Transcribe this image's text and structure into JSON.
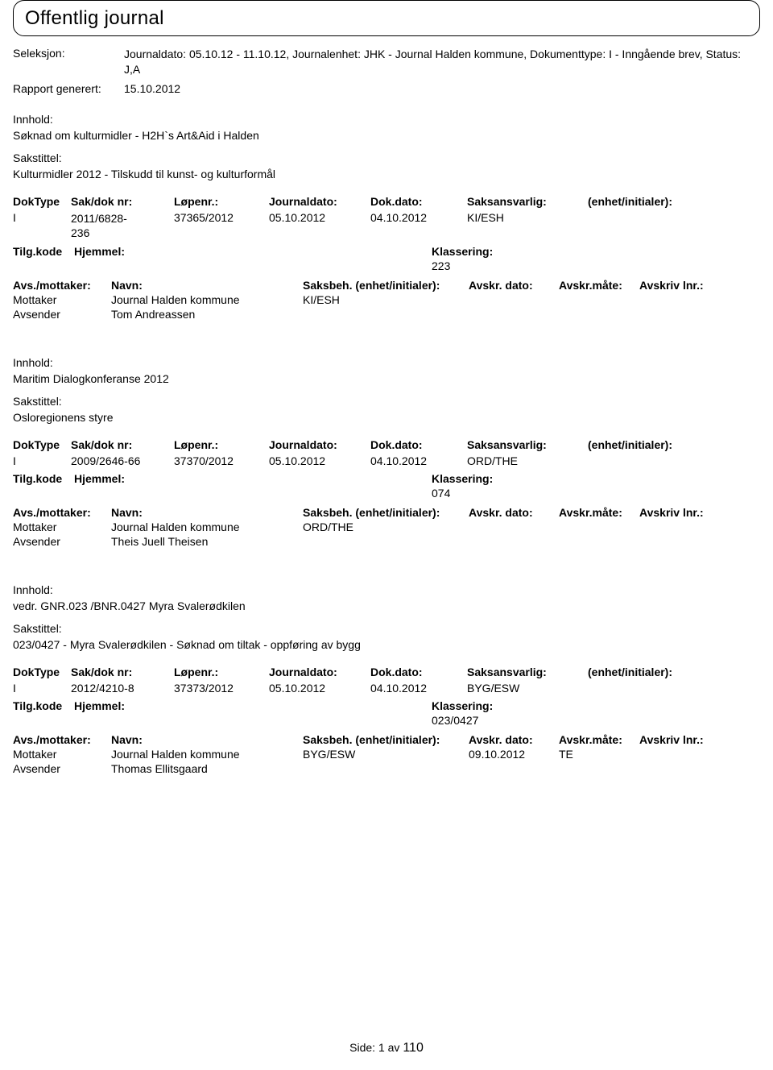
{
  "page_title": "Offentlig journal",
  "header": {
    "seleksjon_label": "Seleksjon:",
    "seleksjon_value": "Journaldato: 05.10.12 - 11.10.12, Journalenhet: JHK - Journal Halden kommune, Dokumenttype: I - Inngående brev, Status: J,A",
    "rapport_label": "Rapport generert:",
    "rapport_value": "15.10.2012"
  },
  "labels": {
    "innhold": "Innhold:",
    "sakstittel": "Sakstittel:",
    "doktype": "DokType",
    "saknr": "Sak/dok nr:",
    "lopenr": "Løpenr.:",
    "journaldato": "Journaldato:",
    "dokdato": "Dok.dato:",
    "saksansvarlig": "Saksansvarlig:",
    "enhet": "(enhet/initialer):",
    "tilgkode": "Tilg.kode",
    "hjemmel": "Hjemmel:",
    "klassering": "Klassering:",
    "avsmottaker": "Avs./mottaker:",
    "navn": "Navn:",
    "saksbeh": "Saksbeh.",
    "enhet2": "(enhet/initialer):",
    "avskrdato": "Avskr. dato:",
    "avskrmate": "Avskr.måte:",
    "avskrivlnr": "Avskriv lnr.:",
    "mottaker": "Mottaker",
    "avsender": "Avsender"
  },
  "entries": [
    {
      "innhold": "Søknad om kulturmidler - H2H`s Art&Aid i Halden",
      "sakstittel": "Kulturmidler 2012 - Tilskudd til kunst- og kulturformål",
      "doktype": "I",
      "saknr_l1": "2011/6828-",
      "saknr_l2": "236",
      "lopenr": "37365/2012",
      "journaldato": "05.10.2012",
      "dokdato": "04.10.2012",
      "saksansvarlig": "KI/ESH",
      "klassering_val": "223",
      "mottaker_navn": "Journal Halden kommune",
      "saksbeh_val": "KI/ESH",
      "avskr_dato": "",
      "avskr_mate": "",
      "avsender_navn": "Tom Andreassen"
    },
    {
      "innhold": "Maritim Dialogkonferanse 2012",
      "sakstittel": "Osloregionens styre",
      "doktype": "I",
      "saknr_l1": "2009/2646-66",
      "saknr_l2": "",
      "lopenr": "37370/2012",
      "journaldato": "05.10.2012",
      "dokdato": "04.10.2012",
      "saksansvarlig": "ORD/THE",
      "klassering_val": "074",
      "mottaker_navn": "Journal Halden kommune",
      "saksbeh_val": "ORD/THE",
      "avskr_dato": "",
      "avskr_mate": "",
      "avsender_navn": "Theis Juell Theisen"
    },
    {
      "innhold": "vedr. GNR.023 /BNR.0427 Myra Svalerødkilen",
      "sakstittel": "023/0427 - Myra Svalerødkilen - Søknad om tiltak - oppføring av bygg",
      "doktype": "I",
      "saknr_l1": "2012/4210-8",
      "saknr_l2": "",
      "lopenr": "37373/2012",
      "journaldato": "05.10.2012",
      "dokdato": "04.10.2012",
      "saksansvarlig": "BYG/ESW",
      "klassering_val": "023/0427",
      "mottaker_navn": "Journal Halden kommune",
      "saksbeh_val": "BYG/ESW",
      "avskr_dato": "09.10.2012",
      "avskr_mate": "TE",
      "avsender_navn": "Thomas Ellitsgaard"
    }
  ],
  "footer": {
    "side_label": "Side:",
    "page": "1",
    "av": "av",
    "total": "110"
  }
}
